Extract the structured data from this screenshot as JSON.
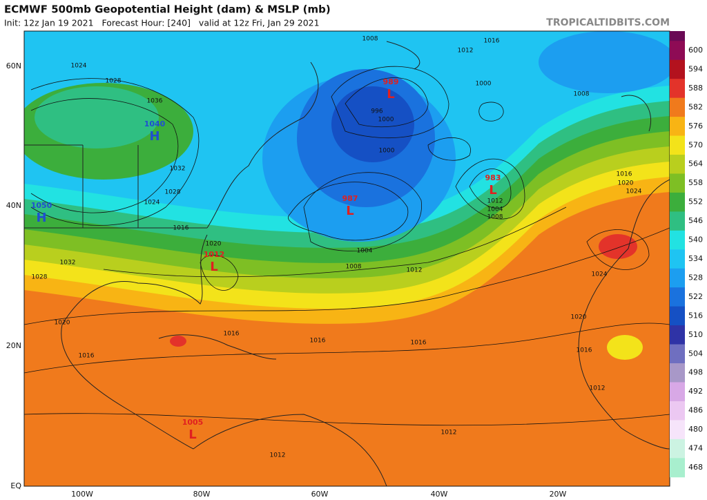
{
  "header": {
    "title": "ECMWF 500mb Geopotential Height (dam) & MSLP (mb)",
    "subtitle": "Init: 12z Jan 19 2021   Forecast Hour: [240]   valid at 12z Fri, Jan 29 2021",
    "site": "TROPICALTIDBITS.COM"
  },
  "colorbar": {
    "levels": [
      {
        "label": "600",
        "color": "#8e0b55"
      },
      {
        "label": "594",
        "color": "#b3121e"
      },
      {
        "label": "588",
        "color": "#e3332a"
      },
      {
        "label": "582",
        "color": "#f07a1c"
      },
      {
        "label": "576",
        "color": "#f8b414"
      },
      {
        "label": "570",
        "color": "#f3e31a"
      },
      {
        "label": "564",
        "color": "#b9cf1e"
      },
      {
        "label": "558",
        "color": "#7ebf24"
      },
      {
        "label": "552",
        "color": "#3cae3c"
      },
      {
        "label": "546",
        "color": "#2fbf82"
      },
      {
        "label": "540",
        "color": "#22e2e2"
      },
      {
        "label": "534",
        "color": "#1fc4f2"
      },
      {
        "label": "528",
        "color": "#1c9ef0"
      },
      {
        "label": "522",
        "color": "#1a72de"
      },
      {
        "label": "516",
        "color": "#1550c4"
      },
      {
        "label": "510",
        "color": "#2f33a6"
      },
      {
        "label": "504",
        "color": "#6f6fc0"
      },
      {
        "label": "498",
        "color": "#a898c8"
      },
      {
        "label": "492",
        "color": "#d8a8e6"
      },
      {
        "label": "486",
        "color": "#ecc8f2"
      },
      {
        "label": "480",
        "color": "#f6e4fa"
      },
      {
        "label": "474",
        "color": "#ccf3e2"
      },
      {
        "label": "468",
        "color": "#a8efce"
      }
    ]
  },
  "lat_labels": [
    "60N",
    "40N",
    "20N",
    "EQ"
  ],
  "lon_labels": [
    "100W",
    "80W",
    "60W",
    "40W",
    "20W"
  ],
  "centers": [
    {
      "value": "1040",
      "letter": "H"
    },
    {
      "value": "1050",
      "letter": "H"
    },
    {
      "value": "989",
      "letter": "L"
    },
    {
      "value": "987",
      "letter": "L"
    },
    {
      "value": "983",
      "letter": "L"
    },
    {
      "value": "1012",
      "letter": "L"
    },
    {
      "value": "1005",
      "letter": "L"
    }
  ],
  "isobar_labels": [
    "1024",
    "1028",
    "1036",
    "1032",
    "1028",
    "1024",
    "1016",
    "1020",
    "1032",
    "1028",
    "1020",
    "1016",
    "1016",
    "1016",
    "1016",
    "1012",
    "1012",
    "1012",
    "1004",
    "1008",
    "1012",
    "996",
    "1000",
    "1000",
    "1008",
    "1012",
    "1016",
    "1000",
    "1008",
    "1016",
    "1020",
    "1024",
    "1024",
    "1020",
    "1016",
    "1012",
    "1004",
    "1008"
  ]
}
